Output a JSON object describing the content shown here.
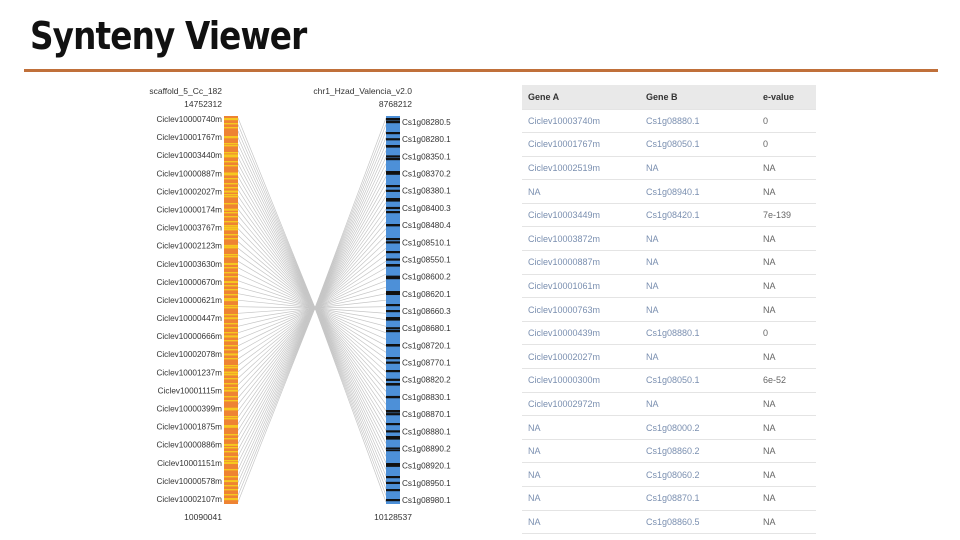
{
  "page": {
    "title": "Synteny Viewer",
    "accent_color": "#c0703a"
  },
  "viewer": {
    "chromosome_a": {
      "name": "scaffold_5_Cc_182",
      "start": "14752312",
      "end": "10090041",
      "color": "#ee8333",
      "band_color": "#f6c820"
    },
    "chromosome_b": {
      "name": "chr1_Hzad_Valencia_v2.0",
      "start": "8768212",
      "end": "10128537",
      "color": "#4d90d8",
      "band_color": "#111111"
    },
    "genes_a": [
      "Ciclev10000740m",
      "Ciclev10001767m",
      "Ciclev10003440m",
      "Ciclev10000887m",
      "Ciclev10002027m",
      "Ciclev10000174m",
      "Ciclev10003767m",
      "Ciclev10002123m",
      "Ciclev10003630m",
      "Ciclev10000670m",
      "Ciclev10000621m",
      "Ciclev10000447m",
      "Ciclev10000666m",
      "Ciclev10002078m",
      "Ciclev10001237m",
      "Ciclev10001115m",
      "Ciclev10000399m",
      "Ciclev10001875m",
      "Ciclev10000886m",
      "Ciclev10001151m",
      "Ciclev10000578m",
      "Ciclev10002107m"
    ],
    "genes_b": [
      "Cs1g08280.5",
      "Cs1g08280.1",
      "Cs1g08350.1",
      "Cs1g08370.2",
      "Cs1g08380.1",
      "Cs1g08400.3",
      "Cs1g08480.4",
      "Cs1g08510.1",
      "Cs1g08550.1",
      "Cs1g08600.2",
      "Cs1g08620.1",
      "Cs1g08660.3",
      "Cs1g08680.1",
      "Cs1g08720.1",
      "Cs1g08770.1",
      "Cs1g08820.2",
      "Cs1g08830.1",
      "Cs1g08870.1",
      "Cs1g08880.1",
      "Cs1g08890.2",
      "Cs1g08920.1",
      "Cs1g08950.1",
      "Cs1g08980.1"
    ]
  },
  "table": {
    "headers": [
      "Gene A",
      "Gene B",
      "e-value"
    ],
    "rows": [
      [
        "Ciclev10003740m",
        "Cs1g08880.1",
        "0"
      ],
      [
        "Ciclev10001767m",
        "Cs1g08050.1",
        "0"
      ],
      [
        "Ciclev10002519m",
        "NA",
        "NA"
      ],
      [
        "NA",
        "Cs1g08940.1",
        "NA"
      ],
      [
        "Ciclev10003449m",
        "Cs1g08420.1",
        "7e-139"
      ],
      [
        "Ciclev10003872m",
        "NA",
        "NA"
      ],
      [
        "Ciclev10000887m",
        "NA",
        "NA"
      ],
      [
        "Ciclev10001061m",
        "NA",
        "NA"
      ],
      [
        "Ciclev10000763m",
        "NA",
        "NA"
      ],
      [
        "Ciclev10000439m",
        "Cs1g08880.1",
        "0"
      ],
      [
        "Ciclev10002027m",
        "NA",
        "NA"
      ],
      [
        "Ciclev10000300m",
        "Cs1g08050.1",
        "6e-52"
      ],
      [
        "Ciclev10002972m",
        "NA",
        "NA"
      ],
      [
        "NA",
        "Cs1g08000.2",
        "NA"
      ],
      [
        "NA",
        "Cs1g08860.2",
        "NA"
      ],
      [
        "NA",
        "Cs1g08060.2",
        "NA"
      ],
      [
        "NA",
        "Cs1g08870.1",
        "NA"
      ],
      [
        "NA",
        "Cs1g08860.5",
        "NA"
      ]
    ]
  }
}
